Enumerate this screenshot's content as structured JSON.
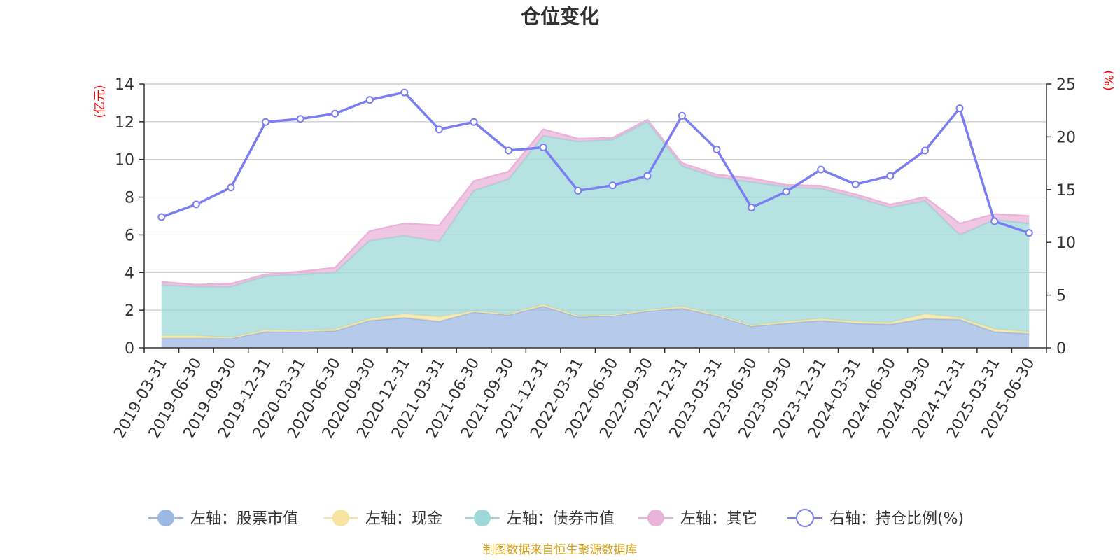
{
  "title": "仓位变化",
  "left_unit": "(亿元)",
  "right_unit": "(%)",
  "source_note": "制图数据来自恒生聚源数据库",
  "chart_data": {
    "type": "area",
    "title": "仓位变化",
    "categories": [
      "2019-03-31",
      "2019-06-30",
      "2019-09-30",
      "2019-12-31",
      "2020-03-31",
      "2020-06-30",
      "2020-09-30",
      "2020-12-31",
      "2021-03-31",
      "2021-06-30",
      "2021-09-30",
      "2021-12-31",
      "2022-03-31",
      "2022-06-30",
      "2022-09-30",
      "2022-12-31",
      "2023-03-31",
      "2023-06-30",
      "2023-09-30",
      "2023-12-31",
      "2024-03-31",
      "2024-06-30",
      "2024-09-30",
      "2024-12-31",
      "2025-03-31",
      "2025-06-30"
    ],
    "left_axis": {
      "ylim": [
        0,
        14
      ],
      "ticks": [
        0,
        2,
        4,
        6,
        8,
        10,
        12,
        14
      ]
    },
    "right_axis": {
      "ylim": [
        0,
        25
      ],
      "ticks": [
        0,
        5,
        10,
        15,
        20,
        25
      ]
    },
    "series": [
      {
        "name": "左轴：股票市值",
        "axis": "left",
        "stacked": true,
        "color": "#9db8e3",
        "values": [
          0.5,
          0.5,
          0.5,
          0.85,
          0.85,
          0.9,
          1.45,
          1.6,
          1.4,
          1.9,
          1.75,
          2.2,
          1.65,
          1.7,
          1.95,
          2.1,
          1.7,
          1.15,
          1.3,
          1.45,
          1.3,
          1.25,
          1.55,
          1.5,
          0.85,
          0.75
        ]
      },
      {
        "name": "左轴：现金",
        "axis": "left",
        "stacked": true,
        "color": "#f7e4a0",
        "values": [
          0.15,
          0.15,
          0.05,
          0.1,
          0.05,
          0.1,
          0.1,
          0.2,
          0.25,
          0.05,
          0.05,
          0.1,
          0.05,
          0.05,
          0.05,
          0.1,
          0.05,
          0.05,
          0.1,
          0.1,
          0.1,
          0.1,
          0.25,
          0.1,
          0.15,
          0.1
        ]
      },
      {
        "name": "左轴：债券市值",
        "axis": "left",
        "stacked": true,
        "color": "#9fd8d8",
        "values": [
          2.7,
          2.6,
          2.7,
          2.85,
          3.0,
          3.0,
          4.15,
          4.15,
          4.0,
          6.4,
          7.15,
          8.95,
          9.25,
          9.3,
          10.0,
          7.45,
          7.3,
          7.6,
          7.15,
          6.9,
          6.6,
          6.1,
          6.0,
          4.4,
          5.8,
          5.75
        ]
      },
      {
        "name": "左轴：其它",
        "axis": "left",
        "stacked": true,
        "color": "#eab4da",
        "values": [
          0.15,
          0.1,
          0.15,
          0.1,
          0.15,
          0.25,
          0.5,
          0.65,
          0.85,
          0.5,
          0.4,
          0.35,
          0.15,
          0.1,
          0.1,
          0.15,
          0.15,
          0.2,
          0.1,
          0.15,
          0.15,
          0.15,
          0.2,
          0.6,
          0.3,
          0.4
        ]
      },
      {
        "name": "右轴：持仓比例(%)",
        "axis": "right",
        "type": "line",
        "color": "#7b7ef0",
        "values": [
          12.4,
          13.6,
          15.2,
          21.4,
          21.7,
          22.2,
          23.5,
          24.2,
          20.7,
          21.4,
          18.7,
          19.0,
          14.9,
          15.4,
          16.3,
          22.0,
          18.8,
          13.3,
          14.8,
          16.9,
          15.5,
          16.3,
          18.7,
          22.7,
          12.0,
          10.9
        ]
      }
    ],
    "grid": true,
    "legend_position": "bottom-center"
  }
}
